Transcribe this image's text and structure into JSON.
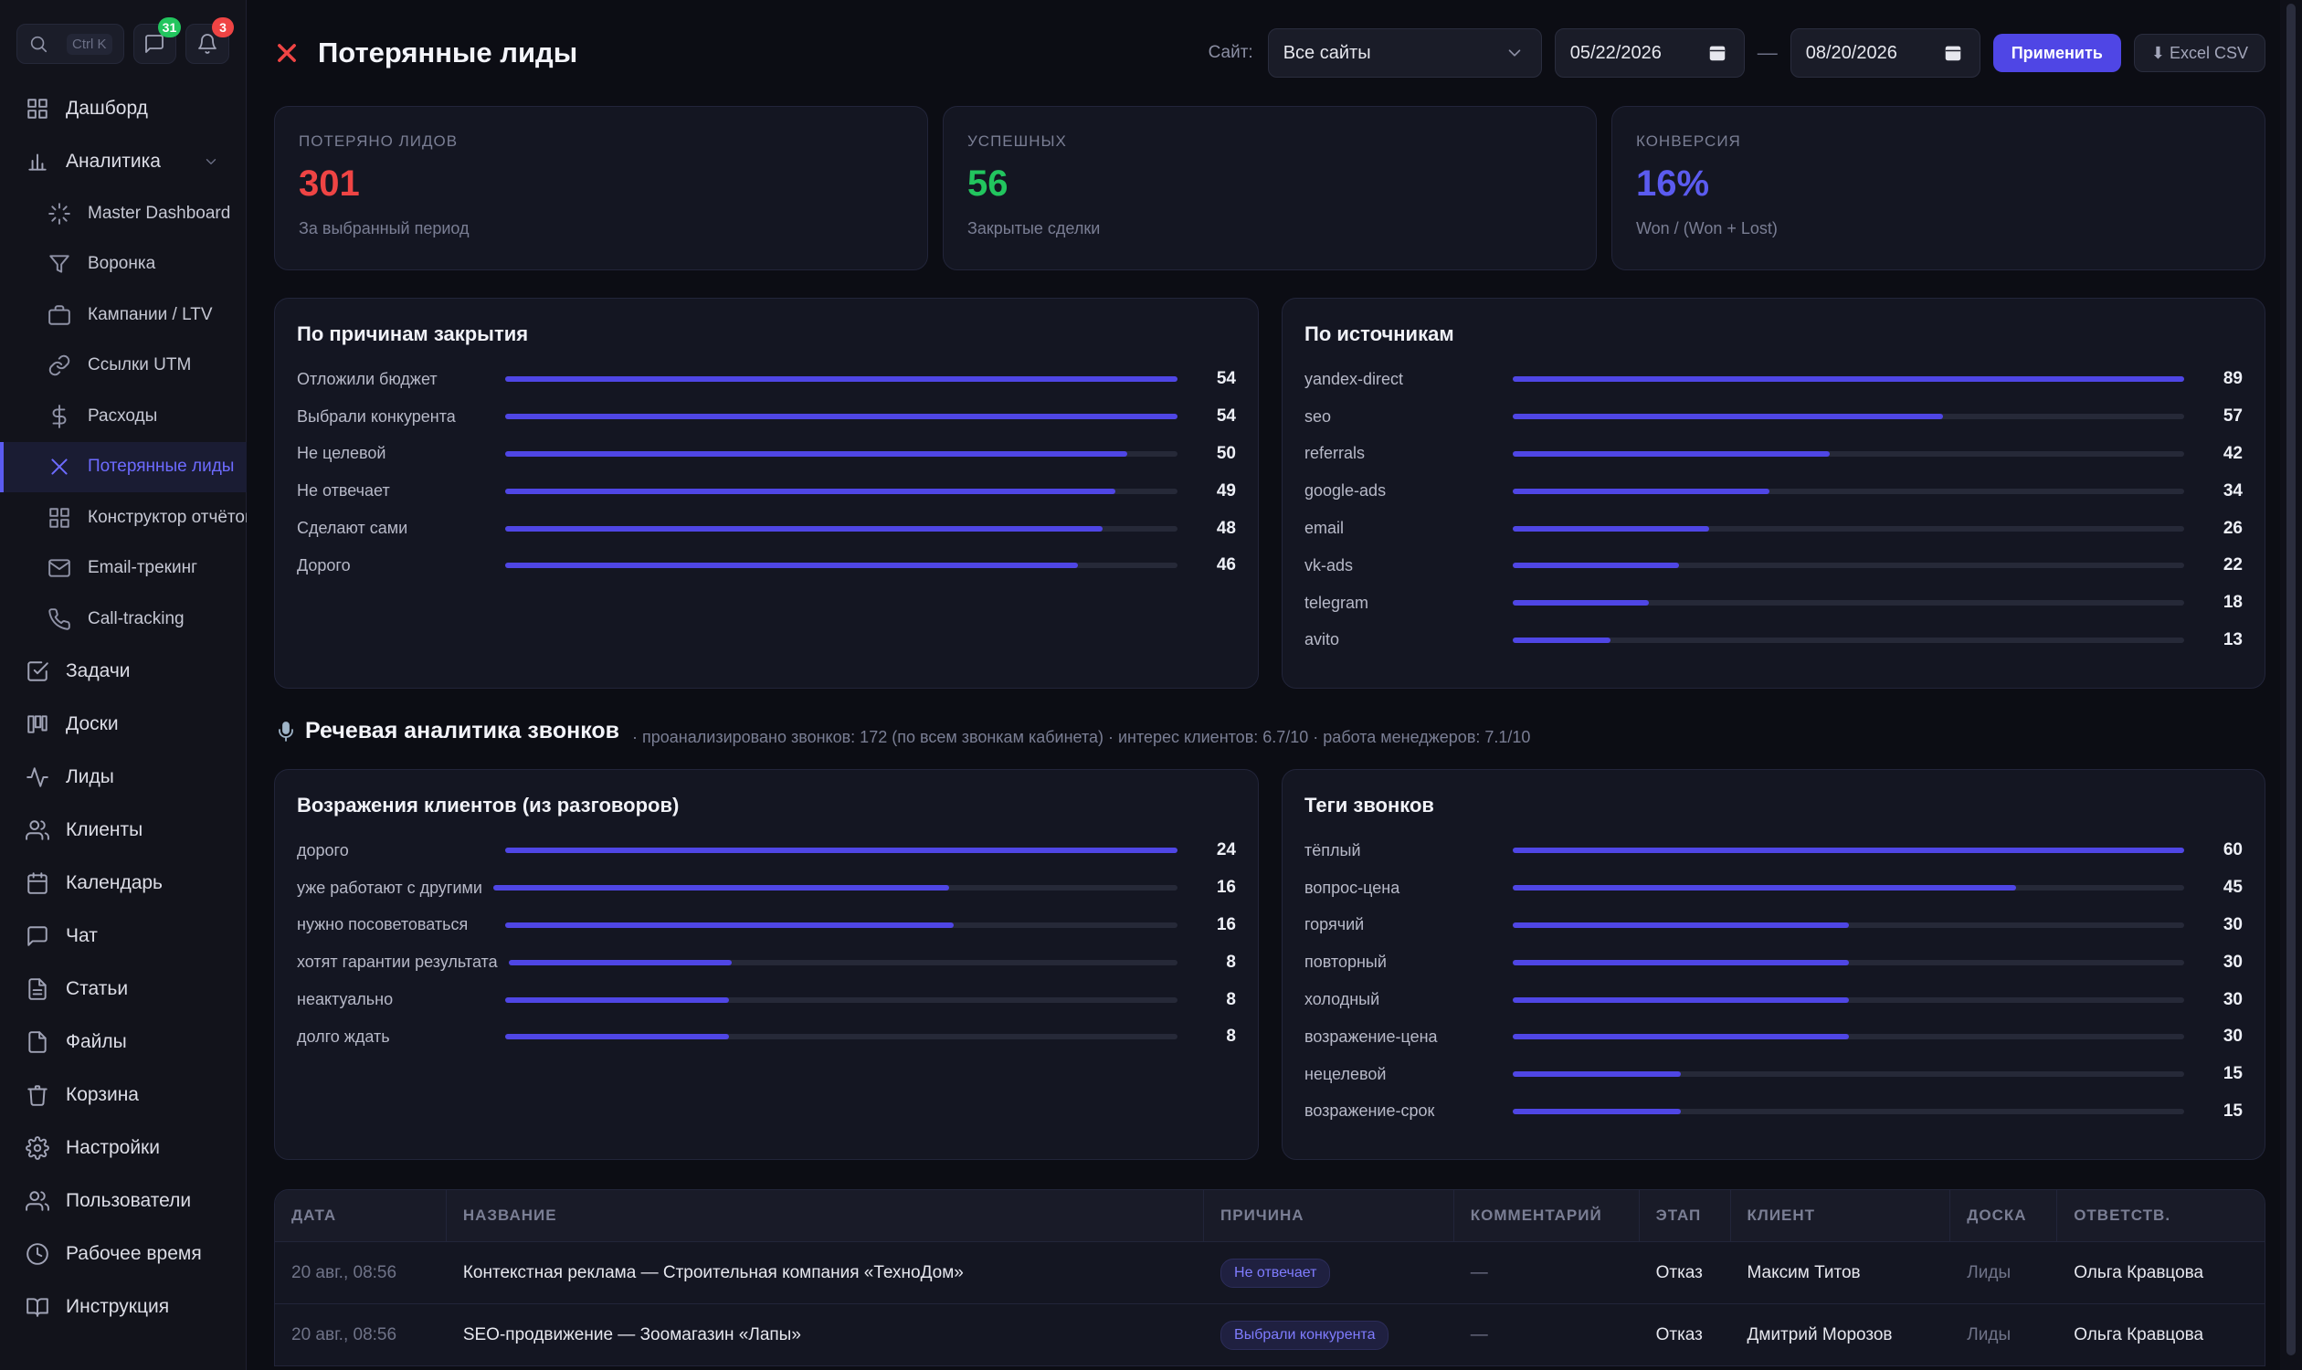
{
  "sidebar": {
    "search_shortcut": "Ctrl K",
    "chat_badge": "31",
    "notif_badge": "3",
    "items_top": [
      {
        "label": "Дашборд",
        "icon": "grid-icon"
      },
      {
        "label": "Аналитика",
        "icon": "bar-chart-icon"
      }
    ],
    "analytics_sub": [
      {
        "label": "Master Dashboard",
        "icon": "loader-icon"
      },
      {
        "label": "Воронка",
        "icon": "funnel-icon"
      },
      {
        "label": "Кампании / LTV",
        "icon": "briefcase-icon"
      },
      {
        "label": "Ссылки UTM",
        "icon": "link-icon"
      },
      {
        "label": "Расходы",
        "icon": "dollar-icon"
      },
      {
        "label": "Потерянные лиды",
        "icon": "x-icon"
      },
      {
        "label": "Конструктор отчётов",
        "icon": "grid-icon"
      },
      {
        "label": "Email-трекинг",
        "icon": "mail-icon"
      },
      {
        "label": "Call-tracking",
        "icon": "phone-icon"
      }
    ],
    "items_bottom": [
      {
        "label": "Задачи",
        "icon": "checkbox-icon"
      },
      {
        "label": "Доски",
        "icon": "board-icon"
      },
      {
        "label": "Лиды",
        "icon": "activity-icon"
      },
      {
        "label": "Клиенты",
        "icon": "users-icon"
      },
      {
        "label": "Календарь",
        "icon": "calendar-icon"
      },
      {
        "label": "Чат",
        "icon": "chat-icon"
      },
      {
        "label": "Статьи",
        "icon": "file-text-icon"
      },
      {
        "label": "Файлы",
        "icon": "file-icon"
      },
      {
        "label": "Корзина",
        "icon": "trash-icon"
      },
      {
        "label": "Настройки",
        "icon": "gear-icon"
      },
      {
        "label": "Пользователи",
        "icon": "users-icon"
      },
      {
        "label": "Рабочее время",
        "icon": "clock-icon"
      },
      {
        "label": "Инструкция",
        "icon": "book-icon"
      }
    ]
  },
  "header": {
    "title": "Потерянные лиды",
    "site_label": "Сайт:",
    "site_value": "Все сайты",
    "date_from": "05/22/2026",
    "date_sep": "—",
    "date_to": "08/20/2026",
    "apply": "Применить",
    "export": "⬇ Excel CSV"
  },
  "kpis": [
    {
      "label": "Потеряно лидов",
      "value": "301",
      "sub": "За выбранный период",
      "color": "#ef4444"
    },
    {
      "label": "Успешных",
      "value": "56",
      "sub": "Закрытые сделки",
      "color": "#22c55e"
    },
    {
      "label": "Конверсия",
      "value": "16%",
      "sub": "Won / (Won + Lost)",
      "color": "#5b5bf0"
    }
  ],
  "reasons": {
    "title": "По причинам закрытия",
    "max": 54,
    "rows": [
      {
        "name": "Отложили бюджет",
        "value": 54
      },
      {
        "name": "Выбрали конкурента",
        "value": 54
      },
      {
        "name": "Не целевой",
        "value": 50
      },
      {
        "name": "Не отвечает",
        "value": 49
      },
      {
        "name": "Сделают сами",
        "value": 48
      },
      {
        "name": "Дорого",
        "value": 46
      }
    ]
  },
  "sources": {
    "title": "По источникам",
    "max": 89,
    "rows": [
      {
        "name": "yandex-direct",
        "value": 89
      },
      {
        "name": "seo",
        "value": 57
      },
      {
        "name": "referrals",
        "value": 42
      },
      {
        "name": "google-ads",
        "value": 34
      },
      {
        "name": "email",
        "value": 26
      },
      {
        "name": "vk-ads",
        "value": 22
      },
      {
        "name": "telegram",
        "value": 18
      },
      {
        "name": "avito",
        "value": 13
      }
    ]
  },
  "speech": {
    "title": "Речевая аналитика звонков",
    "meta": "· проанализировано звонков: 172 (по всем звонкам кабинета) · интерес клиентов: 6.7/10 · работа менеджеров: 7.1/10"
  },
  "objections": {
    "title": "Возражения клиентов (из разговоров)",
    "max": 24,
    "rows": [
      {
        "name": "дорого",
        "value": 24
      },
      {
        "name": "уже работают с другими",
        "value": 16
      },
      {
        "name": "нужно посоветоваться",
        "value": 16
      },
      {
        "name": "хотят гарантии результата",
        "value": 8
      },
      {
        "name": "неактуально",
        "value": 8
      },
      {
        "name": "долго ждать",
        "value": 8
      }
    ]
  },
  "tags": {
    "title": "Теги звонков",
    "max": 60,
    "rows": [
      {
        "name": "тёплый",
        "value": 60
      },
      {
        "name": "вопрос-цена",
        "value": 45
      },
      {
        "name": "горячий",
        "value": 30
      },
      {
        "name": "повторный",
        "value": 30
      },
      {
        "name": "холодный",
        "value": 30
      },
      {
        "name": "возражение-цена",
        "value": 30
      },
      {
        "name": "нецелевой",
        "value": 15
      },
      {
        "name": "возражение-срок",
        "value": 15
      }
    ]
  },
  "table": {
    "headers": [
      "Дата",
      "Название",
      "Причина",
      "Комментарий",
      "Этап",
      "Клиент",
      "Доска",
      "Ответств."
    ],
    "rows": [
      {
        "date": "20 авг., 08:56",
        "name": "Контекстная реклама — Строительная компания «ТехноДом»",
        "reason": "Не отвечает",
        "comment": "—",
        "stage": "Отказ",
        "client": "Максим Титов",
        "board": "Лиды",
        "owner": "Ольга Кравцова"
      },
      {
        "date": "20 авг., 08:56",
        "name": "SEO-продвижение — Зоомагазин «Лапы»",
        "reason": "Выбрали конкурента",
        "comment": "—",
        "stage": "Отказ",
        "client": "Дмитрий Морозов",
        "board": "Лиды",
        "owner": "Ольга Кравцова"
      }
    ]
  }
}
